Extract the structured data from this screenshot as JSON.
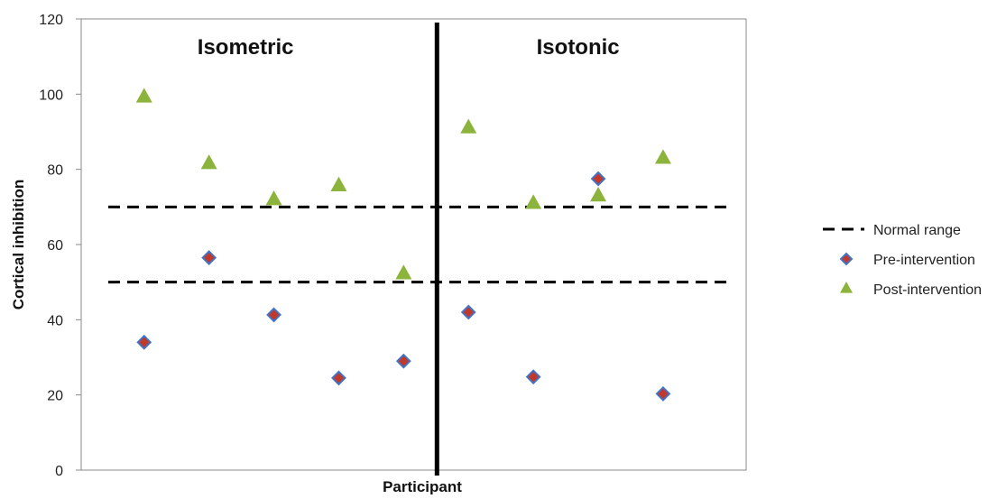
{
  "chart_data": {
    "type": "scatter",
    "title": "",
    "xlabel": "Participant",
    "ylabel": "Cortical inhibition",
    "ylim": [
      0,
      120
    ],
    "y_ticks": [
      0,
      20,
      40,
      60,
      80,
      100,
      120
    ],
    "y_tick_labels": [
      "0",
      "20",
      "40",
      "60",
      "80",
      "100",
      "120"
    ],
    "grid": false,
    "legend_position": "right",
    "panels": [
      {
        "label": "Isometric",
        "participants": [
          1,
          2,
          3,
          4,
          5
        ]
      },
      {
        "label": "Isotonic",
        "participants": [
          6,
          7,
          8,
          9,
          10
        ]
      }
    ],
    "normal_range": {
      "name": "Normal range",
      "lower": 50,
      "upper": 70,
      "color": "#000000"
    },
    "series": [
      {
        "name": "Pre-intervention",
        "marker": "diamond",
        "color": "#c0392b",
        "edge_color": "#4472c4",
        "points": [
          {
            "x": 1,
            "y": 34
          },
          {
            "x": 2,
            "y": 56.5
          },
          {
            "x": 3,
            "y": 41.3
          },
          {
            "x": 4,
            "y": 24.5
          },
          {
            "x": 5,
            "y": 29
          },
          {
            "x": 6,
            "y": 42
          },
          {
            "x": 7,
            "y": 24.8
          },
          {
            "x": 8,
            "y": 77.5
          },
          {
            "x": 9,
            "y": 20.3
          }
        ]
      },
      {
        "name": "Post-intervention",
        "marker": "triangle",
        "color": "#8cb43c",
        "points": [
          {
            "x": 1,
            "y": 99.5
          },
          {
            "x": 2,
            "y": 81.8
          },
          {
            "x": 3,
            "y": 72.2
          },
          {
            "x": 4,
            "y": 75.9
          },
          {
            "x": 5,
            "y": 52.5
          },
          {
            "x": 6,
            "y": 91.3
          },
          {
            "x": 7,
            "y": 71.2
          },
          {
            "x": 8,
            "y": 73.2
          },
          {
            "x": 9,
            "y": 83.2
          }
        ]
      }
    ]
  }
}
